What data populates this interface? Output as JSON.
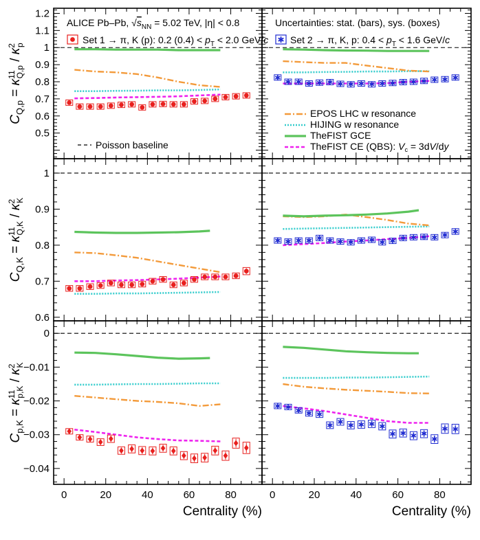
{
  "chart_data": {
    "type": "line",
    "header": {
      "left_prefix": "ALICE Pb–Pb,",
      "left_energy": "√s_NN = 5.02 TeV,",
      "left_eta": "|η| < 0.8",
      "right_note": "Uncertainties: stat. (bars), sys. (boxes)"
    },
    "set_labels": {
      "set1": "Set 1 → π, K (p): 0.2 (0.4) < p_T < 2.0 GeV/c",
      "set2": "Set 2 → π, K, p: 0.4 < p_T < 1.6 GeV/c"
    },
    "poisson_label": "Poisson baseline",
    "legend": [
      {
        "name": "EPOS LHC w resonance",
        "color": "#f39a3a",
        "style": "dashdot"
      },
      {
        "name": "HIJING w resonance",
        "color": "#33cccc",
        "style": "dotted"
      },
      {
        "name": "TheFIST GCE",
        "color": "#5cc45c",
        "style": "solid"
      },
      {
        "name": "TheFIST CE (QBS): V_c = 3dV/dy",
        "color": "#ee22ee",
        "style": "dashed"
      }
    ],
    "colors": {
      "set1": "#e8201e",
      "set2": "#1f2bd1"
    },
    "xlabel": "Centrality (%)",
    "x_ticks": [
      "0",
      "20",
      "40",
      "60",
      "80"
    ],
    "xlim": [
      -5,
      95
    ],
    "rows": [
      {
        "ylabel": "C_Q,p = κ11_Q,p / κ2_p",
        "ylim": [
          0.35,
          1.23
        ],
        "yticks": [
          0.5,
          0.6,
          0.7,
          0.8,
          0.9,
          1,
          1.1,
          1.2
        ],
        "ytick_labels": [
          "0.5",
          "0.6",
          "0.7",
          "0.8",
          "0.9",
          "1",
          "1.1",
          "1.2"
        ],
        "baseline": 1,
        "set1": {
          "x": [
            2.5,
            7.5,
            12.5,
            17.5,
            22.5,
            27.5,
            32.5,
            37.5,
            42.5,
            47.5,
            52.5,
            57.5,
            62.5,
            67.5,
            72.5,
            77.5,
            82.5,
            87.5
          ],
          "y": [
            0.678,
            0.655,
            0.655,
            0.655,
            0.66,
            0.665,
            0.668,
            0.65,
            0.668,
            0.67,
            0.668,
            0.668,
            0.685,
            0.688,
            0.7,
            0.71,
            0.715,
            0.72
          ],
          "err": [
            0.015,
            0.012,
            0.012,
            0.012,
            0.012,
            0.012,
            0.012,
            0.012,
            0.012,
            0.012,
            0.012,
            0.012,
            0.012,
            0.012,
            0.012,
            0.012,
            0.012,
            0.012
          ]
        },
        "set2": {
          "x": [
            2.5,
            7.5,
            12.5,
            17.5,
            22.5,
            27.5,
            32.5,
            37.5,
            42.5,
            47.5,
            52.5,
            57.5,
            62.5,
            67.5,
            72.5,
            77.5,
            82.5,
            87.5
          ],
          "y": [
            0.825,
            0.8,
            0.8,
            0.79,
            0.795,
            0.798,
            0.788,
            0.785,
            0.79,
            0.785,
            0.79,
            0.793,
            0.798,
            0.8,
            0.805,
            0.812,
            0.815,
            0.825
          ],
          "err": [
            0.012,
            0.012,
            0.012,
            0.012,
            0.012,
            0.012,
            0.012,
            0.012,
            0.012,
            0.012,
            0.012,
            0.012,
            0.012,
            0.012,
            0.012,
            0.012,
            0.012,
            0.012
          ]
        },
        "models_set1": {
          "epos": {
            "x": [
              5,
              15,
              25,
              35,
              45,
              55,
              65,
              75
            ],
            "y": [
              0.87,
              0.86,
              0.855,
              0.845,
              0.825,
              0.8,
              0.78,
              0.77
            ]
          },
          "hijing": {
            "x": [
              5,
              15,
              25,
              35,
              45,
              55,
              65,
              75
            ],
            "y": [
              0.745,
              0.745,
              0.747,
              0.748,
              0.75,
              0.75,
              0.752,
              0.755
            ]
          },
          "gce": {
            "x": [
              5,
              15,
              25,
              35,
              45,
              55,
              65,
              75
            ],
            "y": [
              0.99,
              0.99,
              0.988,
              0.988,
              0.988,
              0.985,
              0.985,
              0.985
            ]
          },
          "ce": {
            "x": [
              5,
              15,
              25,
              35,
              45,
              55,
              65,
              75
            ],
            "y": [
              0.703,
              0.705,
              0.708,
              0.71,
              0.712,
              0.715,
              0.72,
              0.725
            ]
          }
        },
        "models_set2": {
          "epos": {
            "x": [
              5,
              15,
              25,
              35,
              45,
              55,
              65,
              75
            ],
            "y": [
              0.92,
              0.915,
              0.91,
              0.91,
              0.895,
              0.88,
              0.865,
              0.86
            ]
          },
          "hijing": {
            "x": [
              5,
              15,
              25,
              35,
              45,
              55,
              65,
              75
            ],
            "y": [
              0.855,
              0.855,
              0.857,
              0.858,
              0.86,
              0.86,
              0.862,
              0.862
            ]
          },
          "gce": {
            "x": [
              5,
              15,
              25,
              35,
              45,
              55,
              65,
              75
            ],
            "y": [
              0.99,
              0.988,
              0.985,
              0.983,
              0.982,
              0.98,
              0.98,
              0.98
            ]
          },
          "ce": {
            "x": [
              5,
              15,
              25,
              35,
              45,
              55,
              65,
              75
            ],
            "y": [
              0.79,
              0.79,
              0.79,
              0.79,
              0.79,
              0.792,
              0.8,
              0.805
            ]
          }
        }
      },
      {
        "ylabel": "C_Q,K = κ11_Q,K / κ2_K",
        "ylim": [
          0.59,
          1.04
        ],
        "yticks": [
          0.6,
          0.7,
          0.8,
          0.9,
          1
        ],
        "ytick_labels": [
          "0.6",
          "0.7",
          "0.8",
          "0.9",
          "1"
        ],
        "baseline": 1,
        "set1": {
          "x": [
            2.5,
            7.5,
            12.5,
            17.5,
            22.5,
            27.5,
            32.5,
            37.5,
            42.5,
            47.5,
            52.5,
            57.5,
            62.5,
            67.5,
            72.5,
            77.5,
            82.5,
            87.5
          ],
          "y": [
            0.68,
            0.68,
            0.685,
            0.688,
            0.695,
            0.69,
            0.69,
            0.692,
            0.7,
            0.705,
            0.69,
            0.695,
            0.705,
            0.712,
            0.712,
            0.712,
            0.715,
            0.728
          ],
          "err": [
            0.008,
            0.008,
            0.008,
            0.008,
            0.008,
            0.008,
            0.008,
            0.008,
            0.008,
            0.008,
            0.008,
            0.008,
            0.008,
            0.008,
            0.008,
            0.008,
            0.008,
            0.01
          ]
        },
        "set2": {
          "x": [
            2.5,
            7.5,
            12.5,
            17.5,
            22.5,
            27.5,
            32.5,
            37.5,
            42.5,
            47.5,
            52.5,
            57.5,
            62.5,
            67.5,
            72.5,
            77.5,
            82.5,
            87.5
          ],
          "y": [
            0.813,
            0.81,
            0.813,
            0.813,
            0.82,
            0.813,
            0.81,
            0.808,
            0.813,
            0.815,
            0.808,
            0.812,
            0.82,
            0.822,
            0.823,
            0.822,
            0.828,
            0.838
          ],
          "err": [
            0.007,
            0.007,
            0.007,
            0.007,
            0.007,
            0.007,
            0.007,
            0.007,
            0.007,
            0.007,
            0.007,
            0.007,
            0.007,
            0.007,
            0.007,
            0.007,
            0.007,
            0.008
          ]
        },
        "models_set1": {
          "epos": {
            "x": [
              5,
              15,
              25,
              35,
              45,
              55,
              65,
              75
            ],
            "y": [
              0.78,
              0.778,
              0.772,
              0.765,
              0.755,
              0.745,
              0.735,
              0.725
            ]
          },
          "hijing": {
            "x": [
              5,
              15,
              25,
              35,
              45,
              55,
              65,
              75
            ],
            "y": [
              0.665,
              0.665,
              0.666,
              0.666,
              0.667,
              0.668,
              0.669,
              0.67
            ]
          },
          "gce": {
            "x": [
              5,
              15,
              25,
              35,
              45,
              55,
              65,
              70
            ],
            "y": [
              0.837,
              0.835,
              0.834,
              0.834,
              0.835,
              0.836,
              0.838,
              0.84
            ]
          },
          "ce": {
            "x": [
              5,
              15,
              25,
              35,
              45,
              55,
              65,
              75
            ],
            "y": [
              0.7,
              0.7,
              0.702,
              0.703,
              0.705,
              0.707,
              0.71,
              0.713
            ]
          }
        },
        "models_set2": {
          "epos": {
            "x": [
              5,
              15,
              25,
              35,
              45,
              55,
              65,
              75
            ],
            "y": [
              0.88,
              0.878,
              0.88,
              0.885,
              0.878,
              0.87,
              0.86,
              0.855
            ]
          },
          "hijing": {
            "x": [
              5,
              15,
              25,
              35,
              45,
              55,
              65,
              75
            ],
            "y": [
              0.845,
              0.846,
              0.847,
              0.848,
              0.849,
              0.85,
              0.851,
              0.852
            ]
          },
          "gce": {
            "x": [
              5,
              15,
              25,
              35,
              45,
              55,
              65,
              70
            ],
            "y": [
              0.882,
              0.88,
              0.882,
              0.883,
              0.885,
              0.888,
              0.893,
              0.897
            ]
          },
          "ce": {
            "x": [
              5,
              15,
              25,
              35,
              45,
              55,
              65,
              75
            ],
            "y": [
              0.8,
              0.803,
              0.806,
              0.81,
              0.813,
              0.817,
              0.82,
              0.825
            ]
          }
        }
      },
      {
        "ylabel": "C_p,K = κ11_p,K / κ2_K",
        "ylim": [
          -0.0447,
          0.0037
        ],
        "yticks": [
          -0.04,
          -0.03,
          -0.02,
          -0.01,
          0
        ],
        "ytick_labels": [
          "−0.04",
          "−0.03",
          "−0.02",
          "−0.01",
          "0"
        ],
        "baseline": 0,
        "set1": {
          "x": [
            2.5,
            7.5,
            12.5,
            17.5,
            22.5,
            27.5,
            32.5,
            37.5,
            42.5,
            47.5,
            52.5,
            57.5,
            62.5,
            67.5,
            72.5,
            77.5,
            82.5,
            87.5
          ],
          "y": [
            -0.029,
            -0.0308,
            -0.0313,
            -0.0322,
            -0.0312,
            -0.0347,
            -0.0342,
            -0.0347,
            -0.0348,
            -0.034,
            -0.0348,
            -0.0362,
            -0.037,
            -0.0368,
            -0.0347,
            -0.0362,
            -0.0325,
            -0.0339
          ],
          "err": [
            0.0006,
            0.0008,
            0.0009,
            0.001,
            0.0011,
            0.0011,
            0.0012,
            0.0012,
            0.0012,
            0.0012,
            0.0012,
            0.0012,
            0.0013,
            0.0013,
            0.0013,
            0.0014,
            0.0015,
            0.0017
          ]
        },
        "set2": {
          "x": [
            2.5,
            7.5,
            12.5,
            17.5,
            22.5,
            27.5,
            32.5,
            37.5,
            42.5,
            47.5,
            52.5,
            57.5,
            62.5,
            67.5,
            72.5,
            77.5,
            82.5,
            87.5
          ],
          "y": [
            -0.0215,
            -0.0218,
            -0.0228,
            -0.0237,
            -0.024,
            -0.0272,
            -0.0262,
            -0.0272,
            -0.027,
            -0.0268,
            -0.0275,
            -0.0298,
            -0.0295,
            -0.0303,
            -0.0297,
            -0.0313,
            -0.0282,
            -0.0283
          ],
          "err": [
            0.0005,
            0.0006,
            0.0007,
            0.0008,
            0.0009,
            0.001,
            0.001,
            0.0011,
            0.0011,
            0.0011,
            0.0011,
            0.0012,
            0.0012,
            0.0012,
            0.0012,
            0.0013,
            0.0014,
            0.0014
          ]
        },
        "models_set1": {
          "epos": {
            "x": [
              5,
              15,
              25,
              35,
              45,
              55,
              65,
              75
            ],
            "y": [
              -0.0185,
              -0.019,
              -0.0195,
              -0.02,
              -0.0203,
              -0.0207,
              -0.0215,
              -0.021
            ]
          },
          "hijing": {
            "x": [
              5,
              15,
              25,
              35,
              45,
              55,
              65,
              75
            ],
            "y": [
              -0.0152,
              -0.0152,
              -0.0151,
              -0.015,
              -0.015,
              -0.0149,
              -0.0148,
              -0.0148
            ]
          },
          "gce": {
            "x": [
              5,
              15,
              25,
              35,
              45,
              55,
              65,
              70
            ],
            "y": [
              -0.0057,
              -0.0058,
              -0.0062,
              -0.0067,
              -0.0072,
              -0.0075,
              -0.0074,
              -0.0073
            ]
          },
          "ce": {
            "x": [
              5,
              15,
              25,
              35,
              45,
              55,
              65,
              75
            ],
            "y": [
              -0.0285,
              -0.0292,
              -0.03,
              -0.0308,
              -0.0313,
              -0.0317,
              -0.0318,
              -0.032
            ]
          }
        },
        "models_set2": {
          "epos": {
            "x": [
              5,
              15,
              25,
              35,
              45,
              55,
              65,
              75
            ],
            "y": [
              -0.015,
              -0.0158,
              -0.0163,
              -0.0167,
              -0.017,
              -0.0173,
              -0.0177,
              -0.0178
            ]
          },
          "hijing": {
            "x": [
              5,
              15,
              25,
              35,
              45,
              55,
              65,
              75
            ],
            "y": [
              -0.0132,
              -0.0132,
              -0.0132,
              -0.0131,
              -0.0131,
              -0.013,
              -0.0129,
              -0.0128
            ]
          },
          "gce": {
            "x": [
              5,
              15,
              25,
              35,
              45,
              55,
              65,
              70
            ],
            "y": [
              -0.004,
              -0.0043,
              -0.0048,
              -0.0053,
              -0.0056,
              -0.0058,
              -0.0059,
              -0.0059
            ]
          },
          "ce": {
            "x": [
              5,
              15,
              25,
              35,
              45,
              55,
              65,
              75
            ],
            "y": [
              -0.0215,
              -0.0222,
              -0.023,
              -0.024,
              -0.025,
              -0.026,
              -0.0265,
              -0.0265
            ]
          }
        }
      }
    ]
  }
}
